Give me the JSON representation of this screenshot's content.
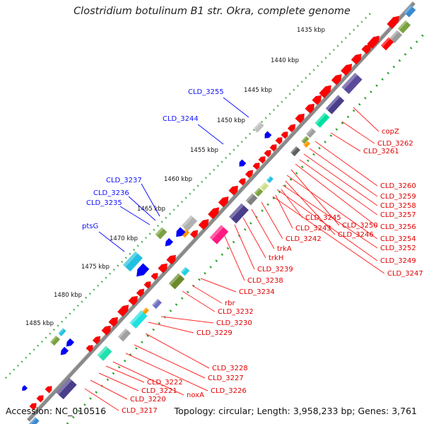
{
  "title": "Clostridium botulinum B1 str. Okra, complete genome",
  "footer": {
    "accession": "Accession: NC_010516",
    "topology": "Topology: circular; Length: 3,958,233 bp; Genes: 3,761"
  },
  "ticks": [
    "1435 kbp",
    "1440 kbp",
    "1445 kbp",
    "1450 kbp",
    "1455 kbp",
    "1460 kbp",
    "1465 kbp",
    "1470 kbp",
    "1475 kbp",
    "1480 kbp",
    "1485 kbp"
  ],
  "blue_labels": [
    "CLD_3255",
    "CLD_3244",
    "CLD_3237",
    "CLD_3236",
    "CLD_3235",
    "ptsG"
  ],
  "red_labels": [
    "copZ",
    "CLD_3262",
    "CLD_3261",
    "CLD_3260",
    "CLD_3259",
    "CLD_3258",
    "CLD_3257",
    "CLD_3256",
    "CLD_3245",
    "CLD_3250",
    "CLD_3254",
    "CLD_3243",
    "CLD_3246",
    "CLD_3252",
    "CLD_3242",
    "CLD_3249",
    "CLD_3247",
    "trkA",
    "trkH",
    "CLD_3239",
    "CLD_3238",
    "CLD_3234",
    "rbr",
    "CLD_3232",
    "CLD_3230",
    "CLD_3229",
    "CLD_3228",
    "CLD_3227",
    "CLD_3226",
    "noxA",
    "CLD_3222",
    "CLD_3221",
    "CLD_3220",
    "CLD_3217"
  ],
  "colors": {
    "backbone": "#808080",
    "forward_cds": "#ff0000",
    "reverse_cds": "#0000ff",
    "label_forward": "#e00000",
    "label_reverse": "#1010ff",
    "gc_dots": "#22a022"
  }
}
